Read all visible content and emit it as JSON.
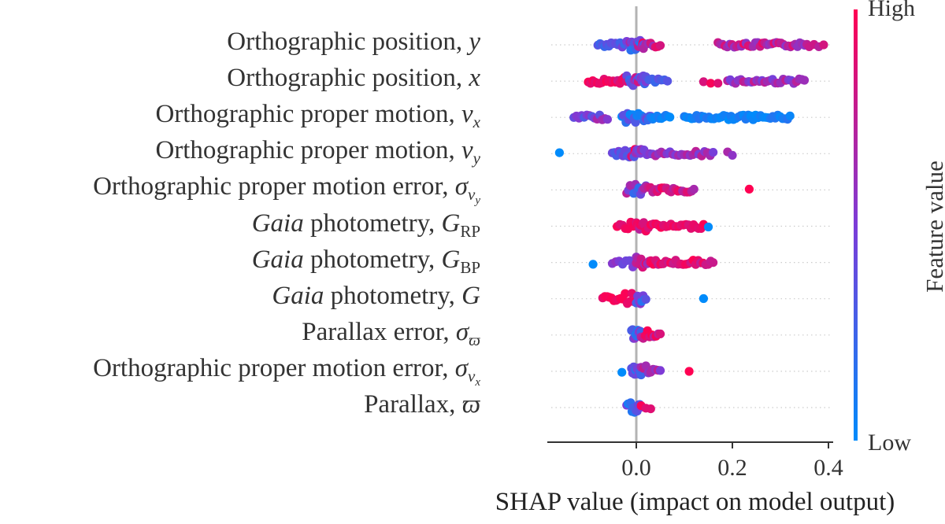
{
  "chart_data": {
    "type": "scatter",
    "subtype": "shap-beeswarm",
    "xlabel": "SHAP value (impact on model output)",
    "xlim": [
      -0.18,
      0.41
    ],
    "xticks": [
      "0.0",
      "0.2",
      "0.4"
    ],
    "xtick_values": [
      0.0,
      0.2,
      0.4
    ],
    "colorbar": {
      "title": "Feature value",
      "high_label": "High",
      "low_label": "Low",
      "high_color": "#ff0052",
      "low_color": "#008bfb"
    },
    "features": [
      {
        "label_main": "Orthographic position, ",
        "label_var": "y",
        "label_sub": "",
        "range": [
          -0.08,
          0.39
        ],
        "clusters": [
          {
            "from": -0.08,
            "to": -0.02,
            "n": 14,
            "fv": [
              0.2,
              0.5
            ]
          },
          {
            "from": -0.015,
            "to": 0.015,
            "n": 18,
            "fv": [
              0.0,
              1.0
            ]
          },
          {
            "from": 0.015,
            "to": 0.05,
            "n": 8,
            "fv": [
              0.5,
              0.95
            ]
          },
          {
            "from": 0.17,
            "to": 0.36,
            "n": 40,
            "fv": [
              0.55,
              1.0
            ]
          },
          {
            "from": 0.37,
            "to": 0.39,
            "n": 3,
            "fv": [
              0.7,
              0.9
            ]
          }
        ]
      },
      {
        "label_main": "Orthographic position, ",
        "label_var": "x",
        "label_sub": "",
        "range": [
          -0.1,
          0.35
        ],
        "clusters": [
          {
            "from": -0.1,
            "to": -0.02,
            "n": 18,
            "fv": [
              0.8,
              1.0
            ]
          },
          {
            "from": -0.02,
            "to": 0.02,
            "n": 16,
            "fv": [
              0.2,
              0.9
            ]
          },
          {
            "from": 0.02,
            "to": 0.065,
            "n": 8,
            "fv": [
              0.2,
              0.4
            ]
          },
          {
            "from": 0.14,
            "to": 0.17,
            "n": 3,
            "fv": [
              0.8,
              1.0
            ]
          },
          {
            "from": 0.19,
            "to": 0.35,
            "n": 30,
            "fv": [
              0.45,
              0.8
            ]
          }
        ]
      },
      {
        "label_main": "Orthographic proper motion, ",
        "label_var": "v",
        "label_sub": "x",
        "range": [
          -0.13,
          0.32
        ],
        "clusters": [
          {
            "from": -0.13,
            "to": -0.06,
            "n": 14,
            "fv": [
              0.3,
              0.7
            ]
          },
          {
            "from": -0.03,
            "to": 0.03,
            "n": 22,
            "fv": [
              0.0,
              0.6
            ]
          },
          {
            "from": 0.03,
            "to": 0.07,
            "n": 10,
            "fv": [
              0.0,
              0.15
            ]
          },
          {
            "from": 0.1,
            "to": 0.32,
            "n": 44,
            "fv": [
              0.0,
              0.15
            ]
          }
        ]
      },
      {
        "label_main": "Orthographic proper motion, ",
        "label_var": "v",
        "label_sub": "y",
        "range": [
          -0.16,
          0.2
        ],
        "clusters": [
          {
            "from": -0.16,
            "to": -0.16,
            "n": 1,
            "fv": [
              0.0,
              0.0
            ]
          },
          {
            "from": -0.05,
            "to": -0.01,
            "n": 10,
            "fv": [
              0.2,
              0.5
            ]
          },
          {
            "from": -0.01,
            "to": 0.01,
            "n": 12,
            "fv": [
              0.3,
              1.0
            ]
          },
          {
            "from": 0.01,
            "to": 0.16,
            "n": 26,
            "fv": [
              0.45,
              0.75
            ]
          },
          {
            "from": 0.19,
            "to": 0.2,
            "n": 2,
            "fv": [
              0.55,
              0.7
            ]
          }
        ]
      },
      {
        "label_main": "Orthographic proper motion error, ",
        "label_var": "σ",
        "label_sub": "v",
        "label_subsub": "y",
        "range": [
          -0.02,
          0.24
        ],
        "clusters": [
          {
            "from": -0.02,
            "to": 0.02,
            "n": 12,
            "fv": [
              0.1,
              0.9
            ]
          },
          {
            "from": 0.02,
            "to": 0.12,
            "n": 22,
            "fv": [
              0.65,
              1.0
            ]
          },
          {
            "from": 0.235,
            "to": 0.235,
            "n": 1,
            "fv": [
              1.0,
              1.0
            ]
          }
        ]
      },
      {
        "label_main": " photometry, ",
        "label_italic_prefix": "Gaia",
        "label_var": "G",
        "label_sub": "RP",
        "range": [
          -0.04,
          0.15
        ],
        "clusters": [
          {
            "from": -0.04,
            "to": 0.0,
            "n": 8,
            "fv": [
              0.85,
              1.0
            ]
          },
          {
            "from": 0.0,
            "to": 0.02,
            "n": 10,
            "fv": [
              0.7,
              1.0
            ]
          },
          {
            "from": 0.02,
            "to": 0.14,
            "n": 24,
            "fv": [
              0.85,
              1.0
            ]
          },
          {
            "from": 0.15,
            "to": 0.15,
            "n": 1,
            "fv": [
              0.0,
              0.0
            ]
          }
        ]
      },
      {
        "label_main": " photometry, ",
        "label_italic_prefix": "Gaia",
        "label_var": "G",
        "label_sub": "BP",
        "range": [
          -0.09,
          0.16
        ],
        "clusters": [
          {
            "from": -0.09,
            "to": -0.09,
            "n": 1,
            "fv": [
              0.0,
              0.0
            ]
          },
          {
            "from": -0.05,
            "to": 0.0,
            "n": 8,
            "fv": [
              0.4,
              0.6
            ]
          },
          {
            "from": 0.0,
            "to": 0.03,
            "n": 10,
            "fv": [
              0.6,
              1.0
            ]
          },
          {
            "from": 0.03,
            "to": 0.16,
            "n": 26,
            "fv": [
              0.75,
              1.0
            ]
          }
        ]
      },
      {
        "label_main": " photometry, ",
        "label_italic_prefix": "Gaia",
        "label_var": "G",
        "label_sub": "",
        "range": [
          -0.07,
          0.14
        ],
        "clusters": [
          {
            "from": -0.07,
            "to": 0.0,
            "n": 16,
            "fv": [
              0.9,
              1.0
            ]
          },
          {
            "from": 0.0,
            "to": 0.02,
            "n": 8,
            "fv": [
              0.1,
              0.6
            ]
          },
          {
            "from": 0.14,
            "to": 0.14,
            "n": 1,
            "fv": [
              0.0,
              0.0
            ]
          }
        ]
      },
      {
        "label_main": "Parallax error, ",
        "label_var": "σ",
        "label_sub": "ϖ",
        "range": [
          -0.01,
          0.05
        ],
        "clusters": [
          {
            "from": -0.01,
            "to": 0.01,
            "n": 10,
            "fv": [
              0.1,
              0.6
            ]
          },
          {
            "from": 0.01,
            "to": 0.05,
            "n": 10,
            "fv": [
              0.7,
              1.0
            ]
          }
        ]
      },
      {
        "label_main": "Orthographic proper motion error, ",
        "label_var": "σ",
        "label_sub": "v",
        "label_subsub": "x",
        "range": [
          -0.03,
          0.11
        ],
        "clusters": [
          {
            "from": -0.03,
            "to": -0.03,
            "n": 1,
            "fv": [
              0.0,
              0.0
            ]
          },
          {
            "from": -0.01,
            "to": 0.01,
            "n": 10,
            "fv": [
              0.1,
              0.5
            ]
          },
          {
            "from": 0.01,
            "to": 0.05,
            "n": 9,
            "fv": [
              0.5,
              0.8
            ]
          },
          {
            "from": 0.11,
            "to": 0.11,
            "n": 1,
            "fv": [
              1.0,
              1.0
            ]
          }
        ]
      },
      {
        "label_main": "Parallax, ",
        "label_var": "ϖ",
        "label_sub": "",
        "range": [
          -0.02,
          0.03
        ],
        "clusters": [
          {
            "from": -0.02,
            "to": 0.01,
            "n": 12,
            "fv": [
              0.05,
              0.5
            ]
          },
          {
            "from": 0.01,
            "to": 0.03,
            "n": 3,
            "fv": [
              0.6,
              1.0
            ]
          }
        ]
      }
    ]
  }
}
